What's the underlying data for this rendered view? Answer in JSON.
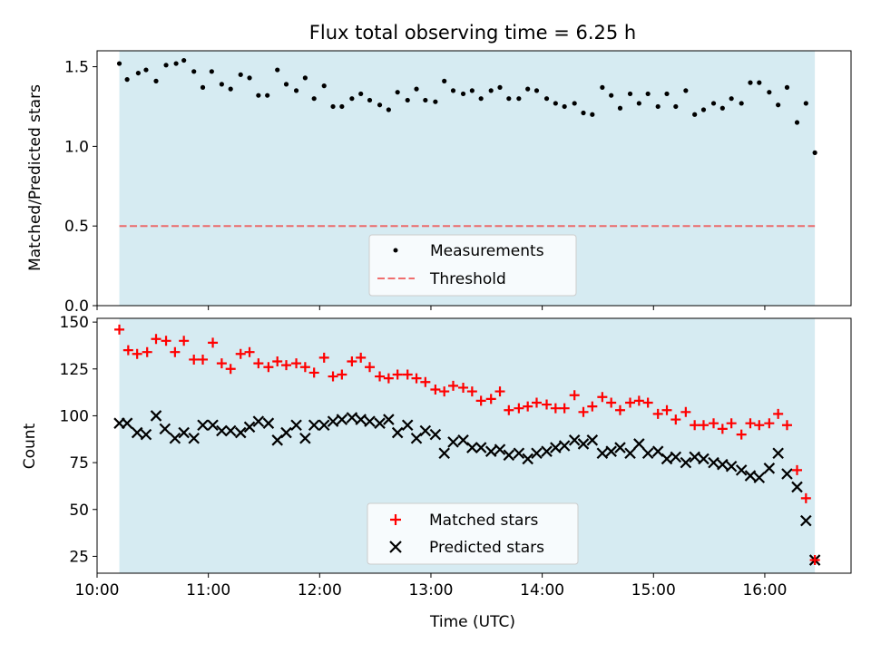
{
  "chart_data": [
    {
      "type": "scatter",
      "title": "Flux total observing time = 6.25 h",
      "xlabel": "",
      "ylabel": "Matched/Predicted stars",
      "xlim": [
        10.0,
        16.775
      ],
      "ylim": [
        0.0,
        1.6
      ],
      "yticks": [
        0.0,
        0.5,
        1.0,
        1.5
      ],
      "ytick_labels": [
        "0.0",
        "0.5",
        "1.0",
        "1.5"
      ],
      "observing_window": [
        10.2,
        16.45
      ],
      "threshold": 0.5,
      "legend": {
        "placement": "lower-center",
        "entries": [
          "Measurements",
          "Threshold"
        ]
      },
      "series": [
        {
          "name": "Measurements",
          "x": [
            10.2,
            10.27,
            10.37,
            10.44,
            10.53,
            10.62,
            10.71,
            10.78,
            10.87,
            10.95,
            11.03,
            11.12,
            11.2,
            11.29,
            11.37,
            11.45,
            11.53,
            11.62,
            11.7,
            11.79,
            11.87,
            11.95,
            12.04,
            12.12,
            12.2,
            12.29,
            12.37,
            12.45,
            12.54,
            12.62,
            12.7,
            12.79,
            12.87,
            12.95,
            13.04,
            13.12,
            13.2,
            13.29,
            13.37,
            13.45,
            13.54,
            13.62,
            13.7,
            13.79,
            13.87,
            13.95,
            14.04,
            14.12,
            14.2,
            14.29,
            14.37,
            14.45,
            14.54,
            14.62,
            14.7,
            14.79,
            14.87,
            14.95,
            15.04,
            15.12,
            15.2,
            15.29,
            15.37,
            15.45,
            15.54,
            15.62,
            15.7,
            15.79,
            15.87,
            15.95,
            16.04,
            16.12,
            16.2,
            16.29,
            16.37,
            16.45
          ],
          "values": [
            1.52,
            1.42,
            1.46,
            1.48,
            1.41,
            1.51,
            1.52,
            1.54,
            1.47,
            1.37,
            1.47,
            1.39,
            1.36,
            1.45,
            1.43,
            1.32,
            1.32,
            1.48,
            1.39,
            1.35,
            1.43,
            1.3,
            1.38,
            1.25,
            1.25,
            1.3,
            1.33,
            1.29,
            1.26,
            1.23,
            1.34,
            1.29,
            1.36,
            1.29,
            1.28,
            1.41,
            1.35,
            1.33,
            1.35,
            1.3,
            1.35,
            1.37,
            1.3,
            1.3,
            1.36,
            1.35,
            1.3,
            1.27,
            1.25,
            1.27,
            1.21,
            1.2,
            1.37,
            1.32,
            1.24,
            1.33,
            1.27,
            1.33,
            1.25,
            1.33,
            1.25,
            1.35,
            1.2,
            1.23,
            1.27,
            1.24,
            1.3,
            1.27,
            1.4,
            1.4,
            1.34,
            1.26,
            1.37,
            1.15,
            1.27,
            0.96
          ]
        }
      ]
    },
    {
      "type": "scatter",
      "title": "",
      "xlabel": "Time (UTC)",
      "ylabel": "Count",
      "xlim": [
        10.0,
        16.775
      ],
      "ylim": [
        16,
        152
      ],
      "yticks": [
        25,
        50,
        75,
        100,
        125,
        150
      ],
      "ytick_labels": [
        "25",
        "50",
        "75",
        "100",
        "125",
        "150"
      ],
      "xticks": [
        10,
        11,
        12,
        13,
        14,
        15,
        16
      ],
      "xtick_labels": [
        "10:00",
        "11:00",
        "12:00",
        "13:00",
        "14:00",
        "15:00",
        "16:00"
      ],
      "observing_window": [
        10.2,
        16.45
      ],
      "legend": {
        "placement": "lower-center",
        "entries": [
          "Matched stars",
          "Predicted stars"
        ]
      },
      "series": [
        {
          "name": "Matched stars",
          "x": [
            10.2,
            10.28,
            10.36,
            10.45,
            10.53,
            10.62,
            10.7,
            10.78,
            10.87,
            10.95,
            11.04,
            11.12,
            11.2,
            11.29,
            11.37,
            11.45,
            11.54,
            11.62,
            11.7,
            11.79,
            11.87,
            11.95,
            12.04,
            12.12,
            12.2,
            12.29,
            12.37,
            12.45,
            12.54,
            12.62,
            12.7,
            12.79,
            12.87,
            12.95,
            13.04,
            13.12,
            13.2,
            13.29,
            13.37,
            13.45,
            13.54,
            13.62,
            13.7,
            13.79,
            13.87,
            13.95,
            14.04,
            14.12,
            14.2,
            14.29,
            14.37,
            14.45,
            14.54,
            14.62,
            14.7,
            14.79,
            14.87,
            14.95,
            15.04,
            15.12,
            15.2,
            15.29,
            15.37,
            15.45,
            15.54,
            15.62,
            15.7,
            15.79,
            15.87,
            15.95,
            16.04,
            16.12,
            16.2,
            16.29,
            16.37,
            16.45
          ],
          "values": [
            146,
            135,
            133,
            134,
            141,
            140,
            134,
            140,
            130,
            130,
            139,
            128,
            125,
            133,
            134,
            128,
            126,
            129,
            127,
            128,
            126,
            123,
            131,
            121,
            122,
            129,
            131,
            126,
            121,
            120,
            122,
            122,
            120,
            118,
            114,
            113,
            116,
            115,
            113,
            108,
            109,
            113,
            103,
            104,
            105,
            107,
            106,
            104,
            104,
            111,
            102,
            105,
            110,
            107,
            103,
            107,
            108,
            107,
            101,
            103,
            98,
            102,
            95,
            95,
            96,
            93,
            96,
            90,
            96,
            95,
            96,
            101,
            95,
            71,
            56,
            23
          ]
        },
        {
          "name": "Predicted stars",
          "x": [
            10.2,
            10.27,
            10.36,
            10.44,
            10.53,
            10.61,
            10.7,
            10.78,
            10.87,
            10.95,
            11.04,
            11.12,
            11.2,
            11.29,
            11.37,
            11.45,
            11.54,
            11.62,
            11.7,
            11.79,
            11.87,
            11.95,
            12.04,
            12.12,
            12.2,
            12.29,
            12.37,
            12.45,
            12.54,
            12.62,
            12.7,
            12.79,
            12.87,
            12.95,
            13.04,
            13.12,
            13.2,
            13.29,
            13.37,
            13.45,
            13.54,
            13.62,
            13.7,
            13.79,
            13.87,
            13.95,
            14.04,
            14.12,
            14.2,
            14.29,
            14.37,
            14.45,
            14.54,
            14.62,
            14.7,
            14.79,
            14.87,
            14.95,
            15.04,
            15.12,
            15.2,
            15.29,
            15.37,
            15.45,
            15.54,
            15.62,
            15.7,
            15.79,
            15.87,
            15.95,
            16.04,
            16.12,
            16.2,
            16.29,
            16.37,
            16.45
          ],
          "values": [
            96,
            96,
            91,
            90,
            100,
            93,
            88,
            91,
            88,
            95,
            95,
            92,
            92,
            91,
            94,
            97,
            96,
            87,
            91,
            95,
            88,
            95,
            95,
            97,
            98,
            99,
            98,
            97,
            96,
            98,
            91,
            95,
            88,
            92,
            90,
            80,
            86,
            87,
            83,
            83,
            81,
            82,
            79,
            80,
            77,
            80,
            81,
            83,
            84,
            87,
            85,
            87,
            80,
            81,
            83,
            80,
            85,
            80,
            81,
            77,
            78,
            75,
            78,
            77,
            75,
            74,
            73,
            71,
            68,
            67,
            72,
            80,
            69,
            62,
            44,
            23
          ]
        }
      ]
    }
  ]
}
